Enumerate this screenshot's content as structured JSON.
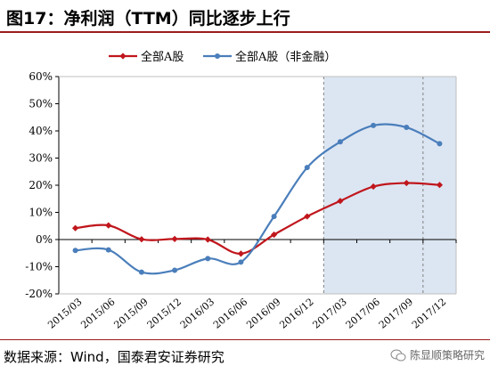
{
  "header": {
    "title": "图17：净利润（TTM）同比逐步上行"
  },
  "footer": {
    "source": "数据来源：Wind，国泰君安证券研究",
    "watermark": "陈显顺策略研究"
  },
  "chart_data": {
    "type": "line",
    "categories": [
      "2015/03",
      "2015/06",
      "2015/09",
      "2015/12",
      "2016/03",
      "2016/06",
      "2016/09",
      "2016/12",
      "2017/03",
      "2017/06",
      "2017/09",
      "2017/12"
    ],
    "series": [
      {
        "name": "全部A股",
        "color": "#c0161c",
        "marker": "diamond",
        "values": [
          4.2,
          5.2,
          0.1,
          0.2,
          0.0,
          -5.2,
          1.8,
          8.5,
          14.2,
          19.5,
          20.8,
          20.1
        ]
      },
      {
        "name": "全部A股（非金融）",
        "color": "#4a7ebb",
        "marker": "circle",
        "values": [
          -4.0,
          -3.8,
          -12.0,
          -11.3,
          -7.0,
          -8.3,
          8.5,
          26.5,
          36.0,
          42.0,
          41.3,
          35.3
        ]
      }
    ],
    "yticks": [
      "60%",
      "50%",
      "40%",
      "30%",
      "20%",
      "10%",
      "0%",
      "-10%",
      "-20%"
    ],
    "ylim": [
      -20,
      60
    ],
    "shaded_from_category": "2017/03",
    "shade_color": "#dce6f2",
    "legend": "top-center",
    "grid": false
  }
}
